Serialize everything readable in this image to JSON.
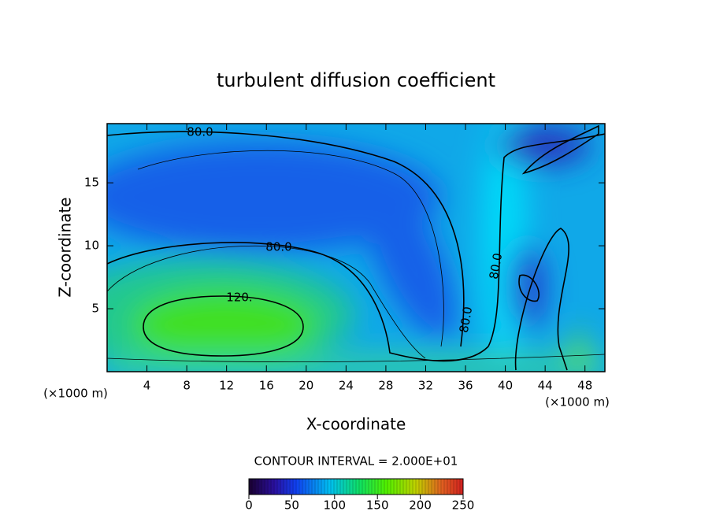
{
  "chart_data": {
    "type": "contour",
    "title": "turbulent diffusion coefficient",
    "x_label": "X-coordinate",
    "y_label": "Z-coordinate",
    "x_unit": "(×1000 m)",
    "x_unit_right": "(×1000 m)",
    "xlim": [
      0,
      50
    ],
    "xticks": [
      4,
      8,
      12,
      16,
      20,
      24,
      28,
      32,
      36,
      40,
      44,
      48
    ],
    "ylim": [
      0,
      19.7
    ],
    "yticks": [
      5,
      10,
      15
    ],
    "contour_levels": [
      60,
      80,
      100,
      120
    ],
    "contour_labels": [
      "80.0",
      "80.0",
      "120.",
      "80.0",
      "80.0"
    ],
    "contour_interval_text": "CONTOUR INTERVAL = 2.000E+01",
    "colorbar": {
      "lim": [
        0,
        250
      ],
      "ticks": [
        0,
        50,
        100,
        150,
        200,
        250
      ]
    }
  }
}
